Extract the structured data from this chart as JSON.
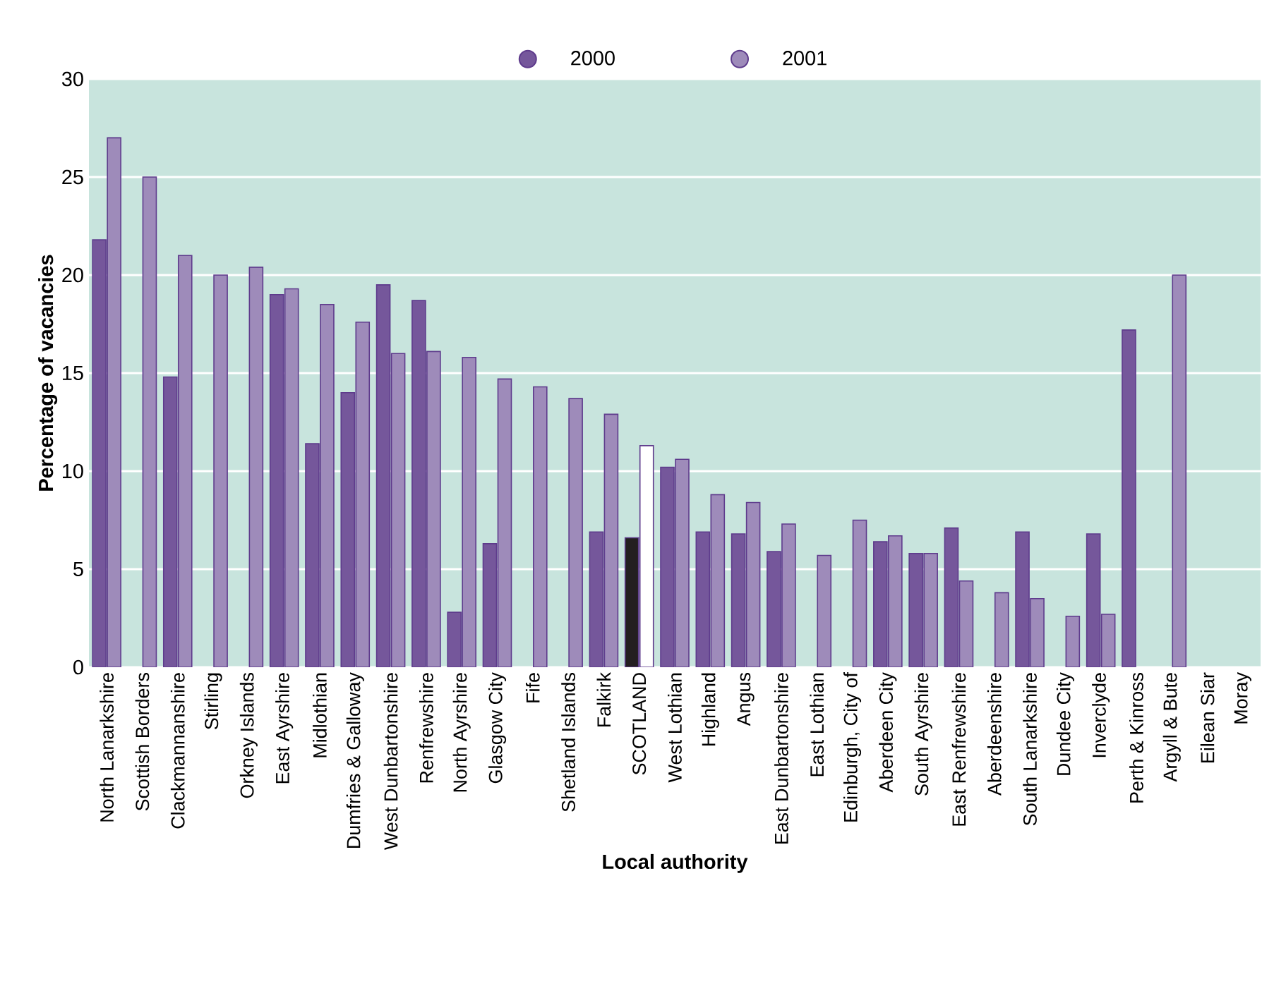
{
  "chart_data": {
    "type": "bar",
    "xlabel": "Local authority",
    "ylabel": "Percentage of vacancies",
    "categories": [
      "North Lanarkshire",
      "Scottish Borders",
      "Clackmannanshire",
      "Stirling",
      "Orkney Islands",
      "East Ayrshire",
      "Midlothian",
      "Dumfries & Galloway",
      "West Dunbartonshire",
      "Renfrewshire",
      "North Ayrshire",
      "Glasgow City",
      "Fife",
      "Shetland Islands",
      "Falkirk",
      "SCOTLAND",
      "West Lothian",
      "Highland",
      "Angus",
      "East Dunbartonshire",
      "East Lothian",
      "Edinburgh, City of",
      "Aberdeen City",
      "South Ayrshire",
      "East Renfrewshire",
      "Aberdeenshire",
      "South Lanarkshire",
      "Dundee City",
      "Inverclyde",
      "Perth & Kinross",
      "Argyll & Bute",
      "Eilean Siar",
      "Moray"
    ],
    "series": [
      {
        "name": "2000",
        "color": "#75579b",
        "colors": [
          "#75579b",
          "#75579b",
          "#75579b",
          "#75579b",
          "#75579b",
          "#75579b",
          "#75579b",
          "#75579b",
          "#75579b",
          "#75579b",
          "#75579b",
          "#75579b",
          "#75579b",
          "#75579b",
          "#75579b",
          "#231f20",
          "#75579b",
          "#75579b",
          "#75579b",
          "#75579b",
          "#75579b",
          "#75579b",
          "#75579b",
          "#75579b",
          "#75579b",
          "#75579b",
          "#75579b",
          "#75579b",
          "#75579b",
          "#75579b",
          "#75579b",
          "#75579b",
          "#75579b"
        ],
        "values": [
          21.8,
          null,
          14.8,
          null,
          null,
          19.0,
          11.4,
          14.0,
          19.5,
          18.7,
          2.8,
          6.3,
          null,
          null,
          6.9,
          6.6,
          10.2,
          6.9,
          6.8,
          5.9,
          null,
          null,
          6.4,
          5.8,
          7.1,
          null,
          6.9,
          null,
          6.8,
          17.2,
          null,
          null,
          null
        ]
      },
      {
        "name": "2001",
        "color": "#9e8bba",
        "colors": [
          "#9e8bba",
          "#9e8bba",
          "#9e8bba",
          "#9e8bba",
          "#9e8bba",
          "#9e8bba",
          "#9e8bba",
          "#9e8bba",
          "#9e8bba",
          "#9e8bba",
          "#9e8bba",
          "#9e8bba",
          "#9e8bba",
          "#9e8bba",
          "#9e8bba",
          "#ffffff",
          "#9e8bba",
          "#9e8bba",
          "#9e8bba",
          "#9e8bba",
          "#9e8bba",
          "#9e8bba",
          "#9e8bba",
          "#9e8bba",
          "#9e8bba",
          "#9e8bba",
          "#9e8bba",
          "#9e8bba",
          "#9e8bba",
          "#9e8bba",
          "#9e8bba",
          "#9e8bba",
          "#9e8bba"
        ],
        "values": [
          27.0,
          25.0,
          21.0,
          20.0,
          20.4,
          19.3,
          18.5,
          17.6,
          16.0,
          16.1,
          15.8,
          14.7,
          14.3,
          13.7,
          12.9,
          11.3,
          10.6,
          8.8,
          8.4,
          7.3,
          5.7,
          7.5,
          6.7,
          5.8,
          4.4,
          3.8,
          3.5,
          2.6,
          2.7,
          null,
          20.0,
          null,
          null
        ]
      }
    ],
    "ylim": [
      0,
      30
    ],
    "yticks": [
      0,
      5,
      10,
      15,
      20,
      25,
      30
    ],
    "grid": "y",
    "legend": "top",
    "marker": "circle"
  }
}
